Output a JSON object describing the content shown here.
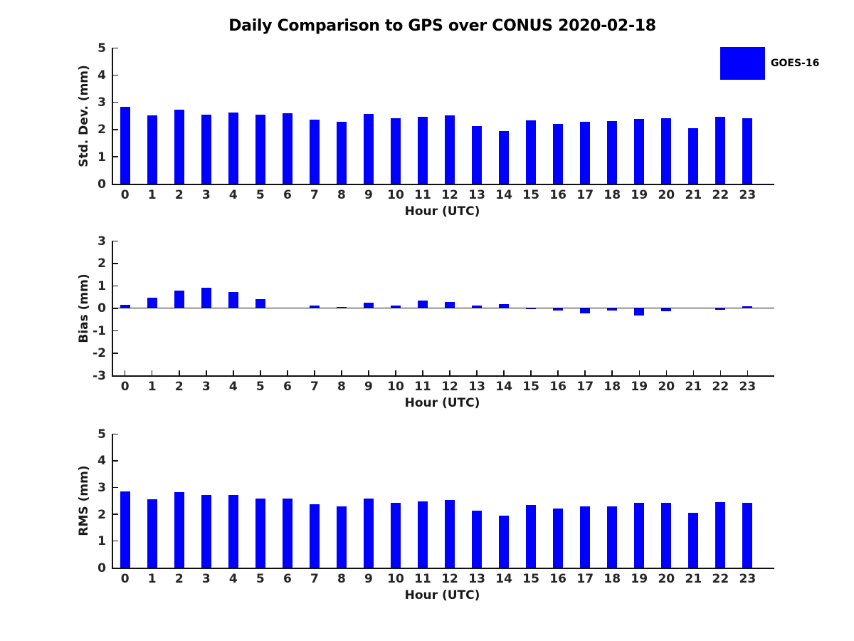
{
  "title": "Daily Comparison to GPS over CONUS 2020-02-18",
  "legend": {
    "position": "top-right",
    "entries": [
      {
        "label": "GOES-16",
        "color": "#0000FF"
      }
    ]
  },
  "colors": {
    "bar": "#0000FF",
    "axis": "#111111",
    "tick_text": "#262626"
  },
  "chart_data": [
    {
      "type": "bar",
      "title": "",
      "xlabel": "Hour (UTC)",
      "ylabel": "Std. Dev. (mm)",
      "ylim": [
        0,
        5
      ],
      "yticks": [
        0,
        1,
        2,
        3,
        4,
        5
      ],
      "grid": false,
      "x_axis_ticks_visible": false,
      "zero_line": false,
      "categories": [
        "0",
        "1",
        "2",
        "3",
        "4",
        "5",
        "6",
        "7",
        "8",
        "9",
        "10",
        "11",
        "12",
        "13",
        "14",
        "15",
        "16",
        "17",
        "18",
        "19",
        "20",
        "21",
        "22",
        "23"
      ],
      "series": [
        {
          "name": "GOES-16",
          "values": [
            2.84,
            2.52,
            2.71,
            2.55,
            2.62,
            2.54,
            2.58,
            2.35,
            2.28,
            2.57,
            2.42,
            2.45,
            2.51,
            2.13,
            1.94,
            2.33,
            2.21,
            2.29,
            2.3,
            2.39,
            2.41,
            2.04,
            2.45,
            2.42
          ]
        }
      ]
    },
    {
      "type": "bar",
      "title": "",
      "xlabel": "Hour (UTC)",
      "ylabel": "Bias (mm)",
      "ylim": [
        -3,
        3
      ],
      "yticks": [
        3,
        2,
        1,
        0,
        -1,
        -2,
        -3
      ],
      "grid": false,
      "x_axis_ticks_visible": true,
      "zero_line": true,
      "categories": [
        "0",
        "1",
        "2",
        "3",
        "4",
        "5",
        "6",
        "7",
        "8",
        "9",
        "10",
        "11",
        "12",
        "13",
        "14",
        "15",
        "16",
        "17",
        "18",
        "19",
        "20",
        "21",
        "22",
        "23"
      ],
      "series": [
        {
          "name": "GOES-16",
          "values": [
            0.15,
            0.45,
            0.78,
            0.9,
            0.73,
            0.4,
            0.0,
            0.12,
            0.05,
            0.23,
            0.12,
            0.33,
            0.28,
            0.12,
            0.17,
            -0.06,
            -0.1,
            -0.25,
            -0.1,
            -0.33,
            -0.13,
            0.0,
            -0.07,
            0.08
          ]
        }
      ]
    },
    {
      "type": "bar",
      "title": "",
      "xlabel": "Hour (UTC)",
      "ylabel": "RMS (mm)",
      "ylim": [
        0,
        5
      ],
      "yticks": [
        0,
        1,
        2,
        3,
        4,
        5
      ],
      "grid": false,
      "x_axis_ticks_visible": false,
      "zero_line": false,
      "categories": [
        "0",
        "1",
        "2",
        "3",
        "4",
        "5",
        "6",
        "7",
        "8",
        "9",
        "10",
        "11",
        "12",
        "13",
        "14",
        "15",
        "16",
        "17",
        "18",
        "19",
        "20",
        "21",
        "22",
        "23"
      ],
      "series": [
        {
          "name": "GOES-16",
          "values": [
            2.84,
            2.56,
            2.82,
            2.7,
            2.72,
            2.57,
            2.58,
            2.36,
            2.28,
            2.58,
            2.42,
            2.47,
            2.52,
            2.13,
            1.95,
            2.33,
            2.21,
            2.3,
            2.3,
            2.41,
            2.41,
            2.04,
            2.45,
            2.42
          ]
        }
      ]
    }
  ]
}
